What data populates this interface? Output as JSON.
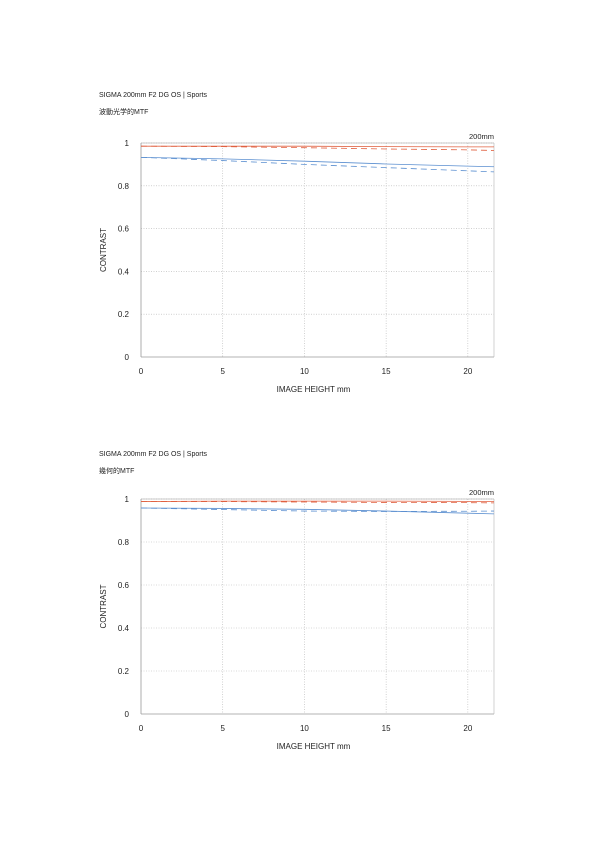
{
  "chart_data": [
    {
      "type": "line",
      "title": "SIGMA 200mm F2 DG OS | Sports",
      "subtitle": "波動光学的MTF",
      "focal_label": "200mm",
      "xlabel": "IMAGE HEIGHT  mm",
      "ylabel": "CONTRAST",
      "xlim": [
        0,
        21.6
      ],
      "ylim": [
        0,
        1
      ],
      "xticks": [
        0,
        5,
        10,
        15,
        20
      ],
      "yticks": [
        0,
        0.2,
        0.4,
        0.6,
        0.8,
        1
      ],
      "ytick_labels": [
        "0",
        "0.2",
        "0.4",
        "0.6",
        "0.8",
        "1"
      ],
      "grid": true,
      "series": [
        {
          "color": "#e06040",
          "style": "solid",
          "x": [
            0,
            5,
            10,
            15,
            20,
            21.6
          ],
          "values": [
            0.985,
            0.985,
            0.985,
            0.983,
            0.982,
            0.982
          ]
        },
        {
          "color": "#e06040",
          "style": "dashed",
          "x": [
            0,
            5,
            10,
            15,
            20,
            21.6
          ],
          "values": [
            0.985,
            0.983,
            0.978,
            0.972,
            0.968,
            0.965
          ]
        },
        {
          "color": "#5b8fd0",
          "style": "solid",
          "x": [
            0,
            5,
            10,
            15,
            20,
            21.6
          ],
          "values": [
            0.933,
            0.926,
            0.915,
            0.902,
            0.892,
            0.889
          ]
        },
        {
          "color": "#5b8fd0",
          "style": "dashed",
          "x": [
            0,
            5,
            10,
            15,
            20,
            21.6
          ],
          "values": [
            0.933,
            0.918,
            0.9,
            0.885,
            0.87,
            0.865
          ]
        }
      ]
    },
    {
      "type": "line",
      "title": "SIGMA 200mm F2 DG OS | Sports",
      "subtitle": "幾何的MTF",
      "focal_label": "200mm",
      "xlabel": "IMAGE HEIGHT  mm",
      "ylabel": "CONTRAST",
      "xlim": [
        0,
        21.6
      ],
      "ylim": [
        0,
        1
      ],
      "xticks": [
        0,
        5,
        10,
        15,
        20
      ],
      "yticks": [
        0,
        0.2,
        0.4,
        0.6,
        0.8,
        1
      ],
      "ytick_labels": [
        "0",
        "0.2",
        "0.4",
        "0.6",
        "0.8",
        "1"
      ],
      "grid": true,
      "series": [
        {
          "color": "#e06040",
          "style": "solid",
          "x": [
            0,
            5,
            10,
            15,
            20,
            21.6
          ],
          "values": [
            0.988,
            0.99,
            0.99,
            0.99,
            0.989,
            0.989
          ]
        },
        {
          "color": "#e06040",
          "style": "dashed",
          "x": [
            0,
            5,
            10,
            15,
            20,
            21.6
          ],
          "values": [
            0.988,
            0.988,
            0.986,
            0.984,
            0.983,
            0.982
          ]
        },
        {
          "color": "#5b8fd0",
          "style": "solid",
          "x": [
            0,
            5,
            10,
            15,
            20,
            21.6
          ],
          "values": [
            0.958,
            0.956,
            0.952,
            0.944,
            0.934,
            0.931
          ]
        },
        {
          "color": "#5b8fd0",
          "style": "dashed",
          "x": [
            0,
            5,
            10,
            15,
            20,
            21.6
          ],
          "values": [
            0.958,
            0.951,
            0.944,
            0.942,
            0.943,
            0.944
          ]
        }
      ]
    }
  ]
}
